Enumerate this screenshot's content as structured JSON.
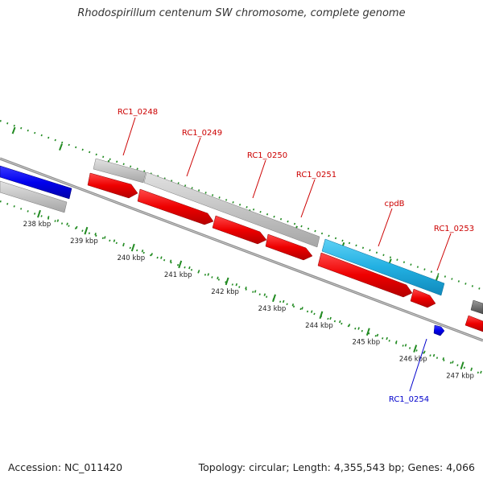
{
  "header": {
    "title": "Rhodospirillum centenum SW chromosome, complete genome"
  },
  "footer": {
    "accession": "Accession: NC_011420",
    "summary": "Topology: circular; Length: 4,355,543 bp; Genes: 4,066"
  },
  "colors": {
    "forward_cds": "#ff0000",
    "reverse_cds": "#c0c0c0",
    "highlight_cds": "#29b6e6",
    "other_strand": "#0000ff",
    "backbone": "#888888",
    "tick": "#228b22",
    "label_red": "#cc0000",
    "label_blue": "#0000cc"
  },
  "scale": {
    "ticks": [
      {
        "label": "238 kbp"
      },
      {
        "label": "239 kbp"
      },
      {
        "label": "240 kbp"
      },
      {
        "label": "241 kbp"
      },
      {
        "label": "242 kbp"
      },
      {
        "label": "243 kbp"
      },
      {
        "label": "244 kbp"
      },
      {
        "label": "245 kbp"
      },
      {
        "label": "246 kbp"
      },
      {
        "label": "247 kbp"
      }
    ]
  },
  "genes": [
    {
      "id": "RC1_0248",
      "color": "label_red"
    },
    {
      "id": "RC1_0249",
      "color": "label_red"
    },
    {
      "id": "RC1_0250",
      "color": "label_red"
    },
    {
      "id": "RC1_0251",
      "color": "label_red"
    },
    {
      "id": "cpdB",
      "color": "label_red"
    },
    {
      "id": "RC1_0253",
      "color": "label_red"
    },
    {
      "id": "RC1_0254",
      "color": "label_blue"
    }
  ]
}
